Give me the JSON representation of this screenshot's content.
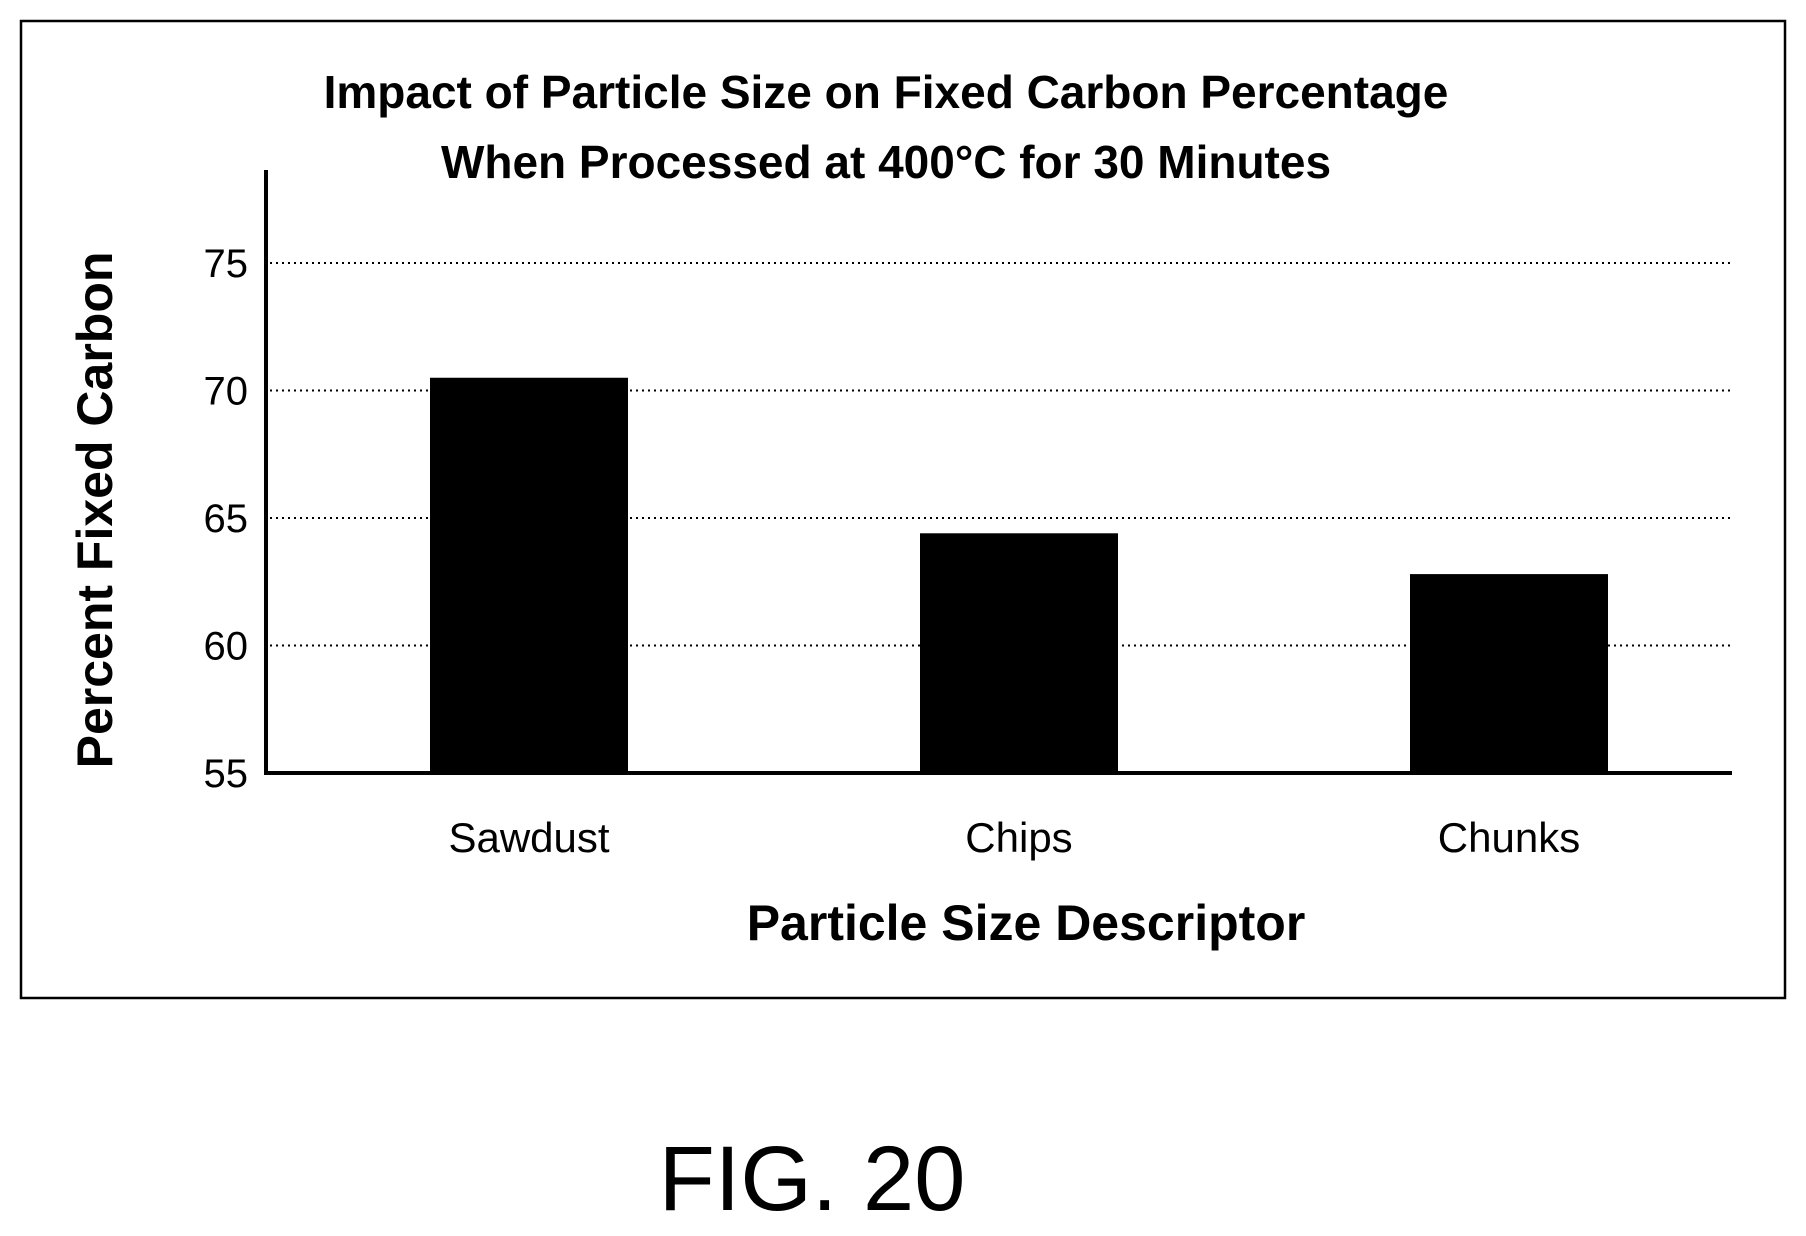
{
  "chart_data": {
    "type": "bar",
    "title": "Impact of Particle Size on Fixed Carbon Percentage",
    "subtitle": "When Processed at 400°C for 30 Minutes",
    "xlabel": "Particle Size Descriptor",
    "ylabel": "Percent Fixed Carbon",
    "categories": [
      "Sawdust",
      "Chips",
      "Chunks"
    ],
    "values": [
      70.5,
      64.4,
      62.8
    ],
    "ylim": [
      55,
      78
    ],
    "yticks": [
      55,
      60,
      65,
      70,
      75
    ],
    "grid": true,
    "bar_color": "#000000"
  },
  "figure_label": "FIG. 20"
}
